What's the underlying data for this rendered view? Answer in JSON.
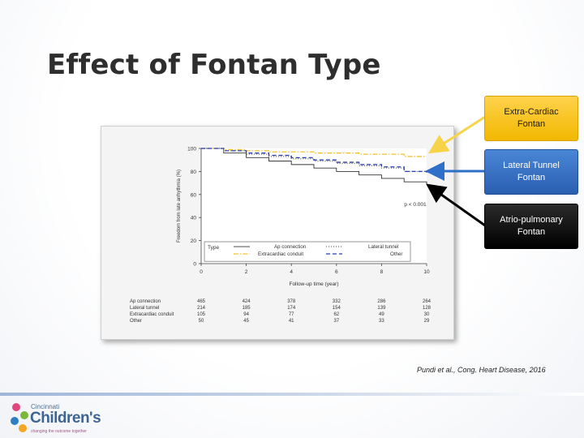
{
  "slide": {
    "title": "Effect of Fontan Type",
    "citation": "Pundi et al., Cong. Heart Disease, 2016"
  },
  "callouts": [
    {
      "line1": "Extra-Cardiac",
      "line2": "Fontan",
      "color": "#f2b800"
    },
    {
      "line1": "Lateral Tunnel",
      "line2": "Fontan",
      "color": "#2a5fb0"
    },
    {
      "line1": "Atrio-pulmonary",
      "line2": "Fontan",
      "color": "#000000"
    }
  ],
  "arrow_colors": {
    "extra": "#f7d34a",
    "lateral": "#2e6fc7",
    "atrio": "#000000"
  },
  "logo": {
    "line1": "Cincinnati",
    "line2": "Children's",
    "line3": "changing the outcome together",
    "colors": [
      "#e0457b",
      "#7bb83a",
      "#2e7fc1",
      "#f5a623"
    ]
  },
  "chart_data": {
    "type": "line",
    "xlabel": "Follow-up time (year)",
    "ylabel": "Freedom from late arrhythmia (%)",
    "xlim": [
      0,
      10
    ],
    "ylim": [
      0,
      100
    ],
    "x_ticks": [
      "0",
      "2",
      "4",
      "6",
      "8",
      "10"
    ],
    "y_ticks": [
      "0",
      "20",
      "40",
      "60",
      "80",
      "100"
    ],
    "annotation": "p < 0.001",
    "legend_title": "Type",
    "legend_position": "bottom-right",
    "series": [
      {
        "name": "Ap connection",
        "style": "solid",
        "color": "#333333",
        "x": [
          0,
          1,
          2,
          3,
          4,
          5,
          6,
          7,
          8,
          9,
          10
        ],
        "y": [
          100,
          96,
          92,
          89,
          86,
          83,
          80,
          77,
          74,
          71,
          69
        ]
      },
      {
        "name": "Lateral tunnel",
        "style": "dotted",
        "color": "#777777",
        "x": [
          0,
          1,
          2,
          3,
          4,
          5,
          6,
          7,
          8,
          9,
          10
        ],
        "y": [
          100,
          98,
          95,
          93,
          91,
          89,
          87,
          85,
          83,
          80,
          79
        ]
      },
      {
        "name": "Extracardiac conduit",
        "style": "dashdot",
        "color": "#f2c12e",
        "x": [
          0,
          1,
          2,
          3,
          4,
          5,
          6,
          7,
          8,
          9,
          10
        ],
        "y": [
          100,
          99,
          98,
          97,
          97,
          96,
          96,
          95,
          95,
          93,
          93
        ]
      },
      {
        "name": "Other",
        "style": "dashed",
        "color": "#2a3fb0",
        "x": [
          0,
          1,
          2,
          3,
          4,
          5,
          6,
          7,
          8,
          9,
          10
        ],
        "y": [
          100,
          98,
          96,
          94,
          92,
          90,
          88,
          86,
          84,
          80,
          79
        ]
      }
    ],
    "risk_table": {
      "times": [
        "0",
        "2",
        "4",
        "6",
        "8",
        "10"
      ],
      "rows": [
        {
          "label": "Ap connection",
          "counts": [
            "465",
            "424",
            "378",
            "332",
            "286",
            "264"
          ]
        },
        {
          "label": "Lateral tunnel",
          "counts": [
            "214",
            "185",
            "174",
            "154",
            "139",
            "128"
          ]
        },
        {
          "label": "Extracardiac conduit",
          "counts": [
            "105",
            "94",
            "77",
            "62",
            "49",
            "30"
          ]
        },
        {
          "label": "Other",
          "counts": [
            "50",
            "45",
            "41",
            "37",
            "33",
            "29"
          ]
        }
      ]
    }
  }
}
